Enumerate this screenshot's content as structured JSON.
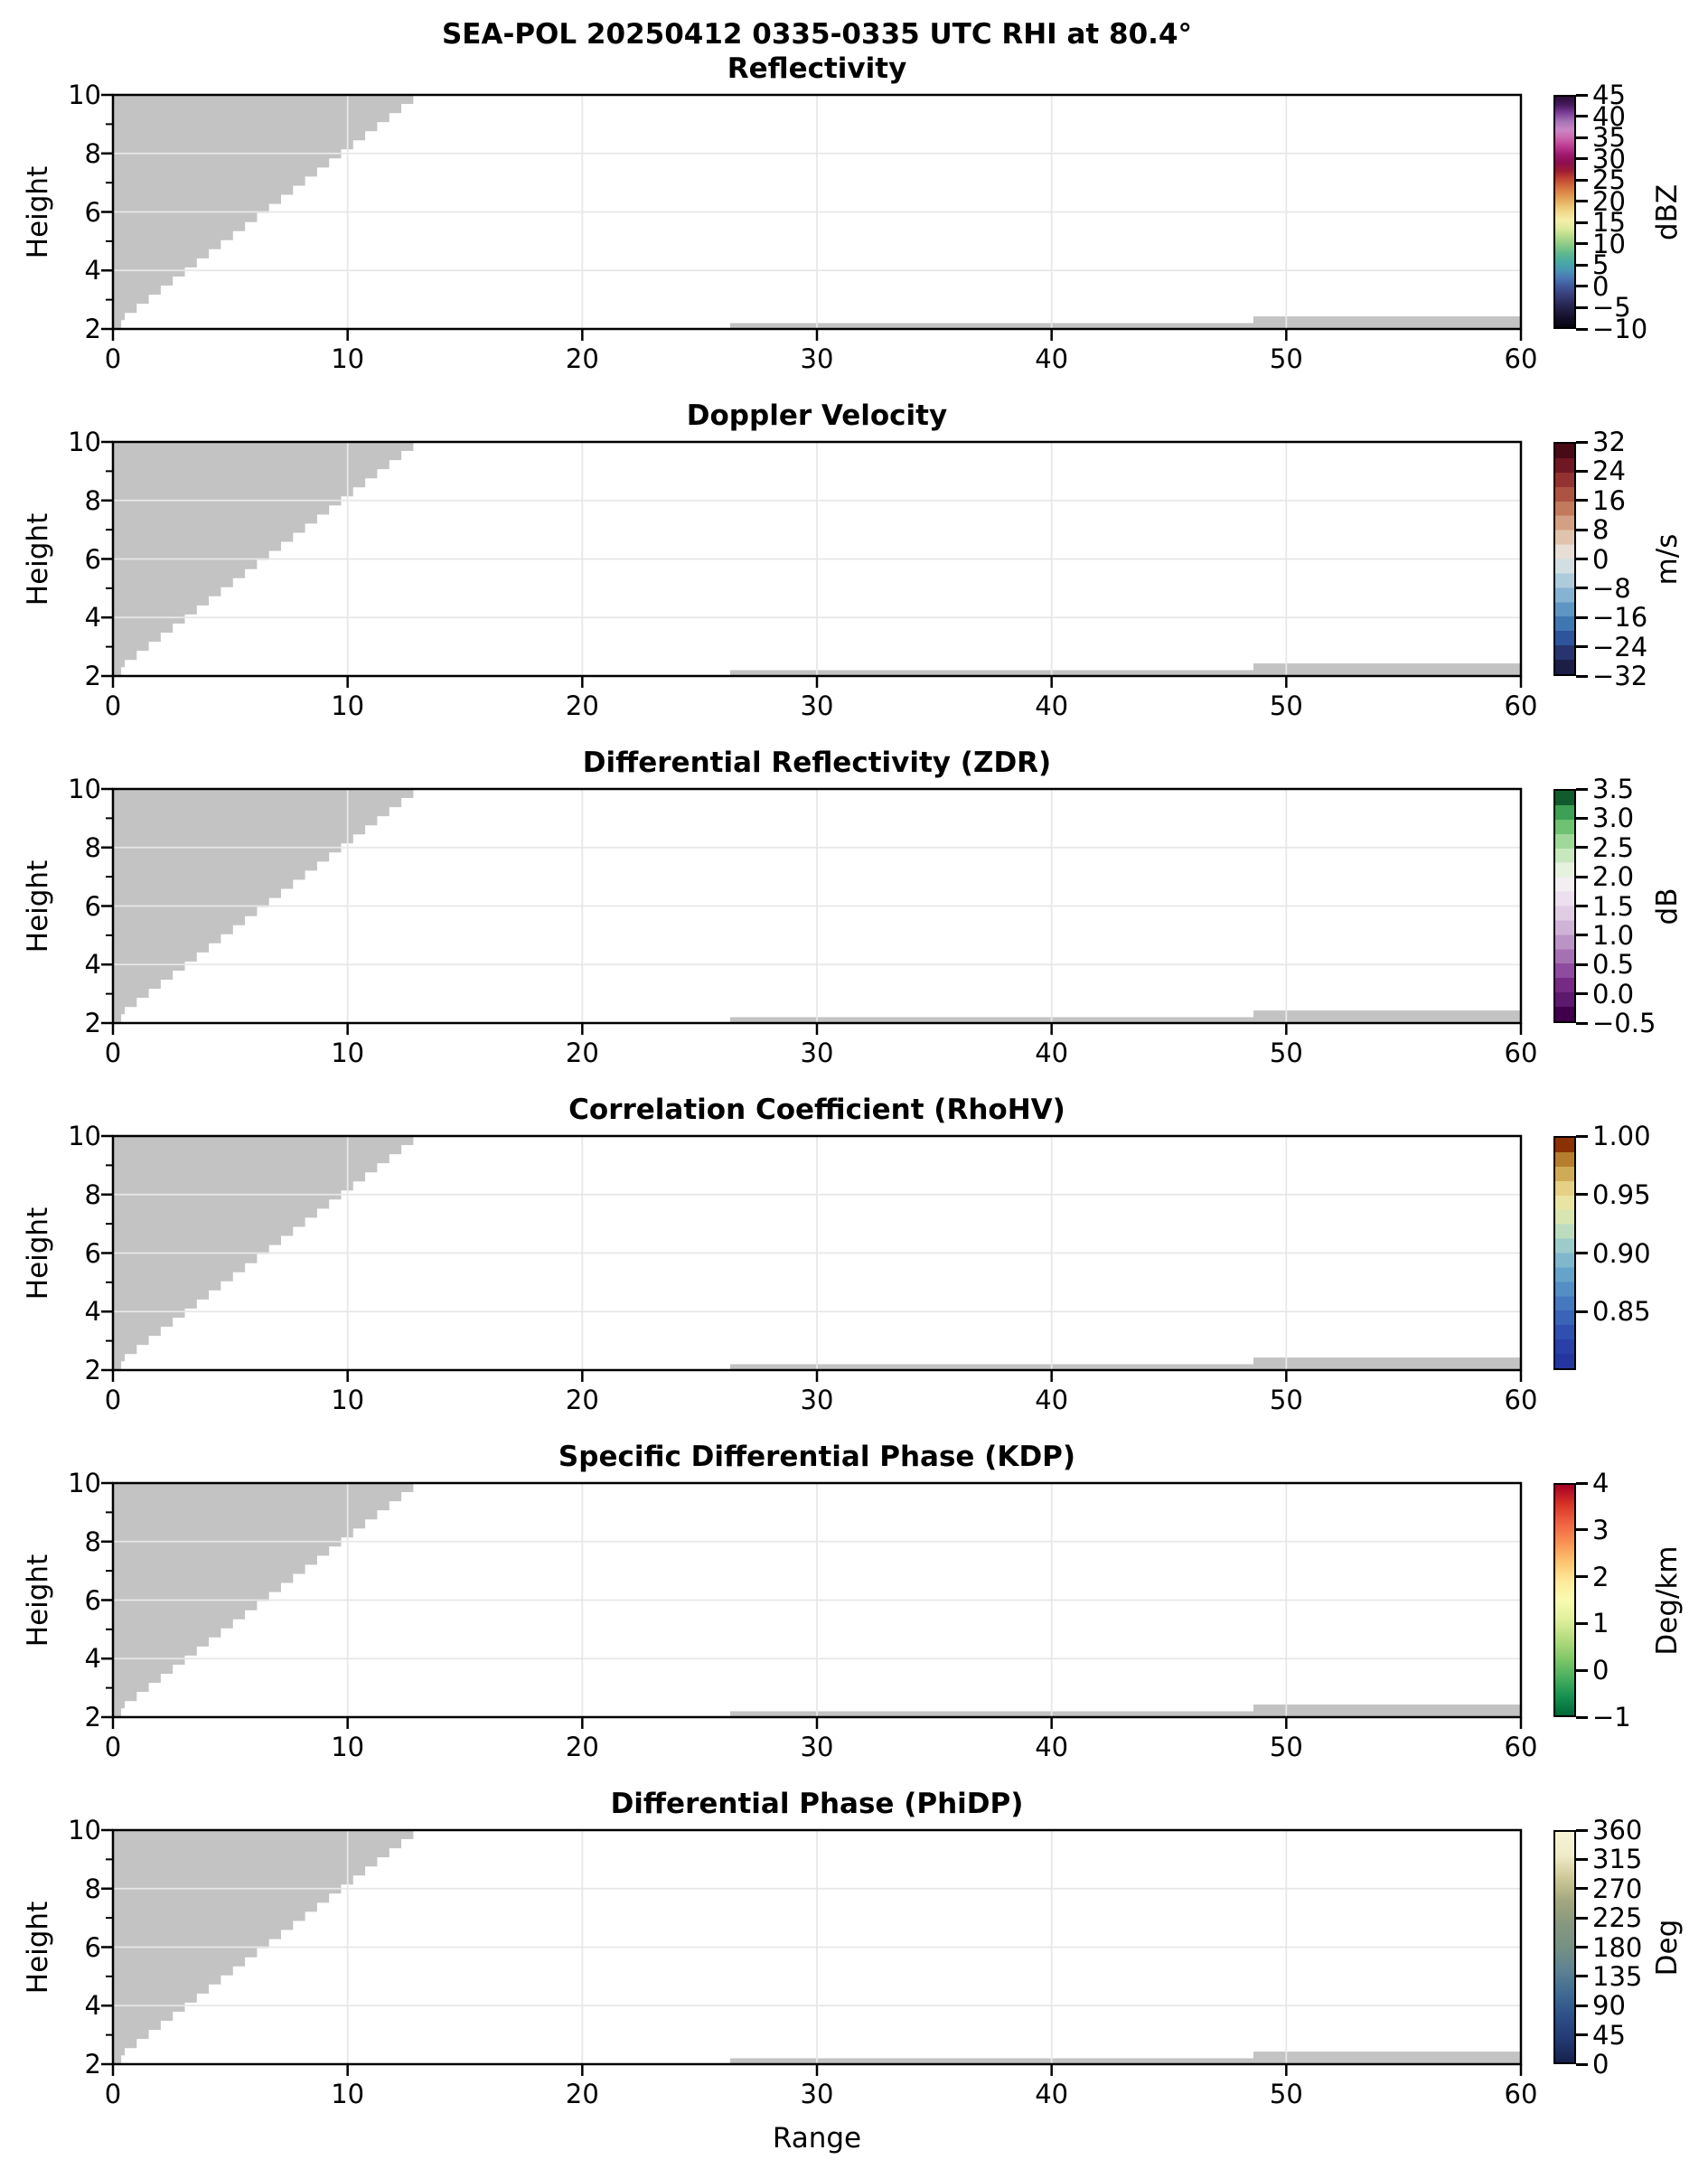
{
  "figure": {
    "suptitle": "SEA-POL 20250412 0335-0335 UTC RHI at 80.4°",
    "background": "#ffffff"
  },
  "chart_data": {
    "type": "heatmap",
    "note": "Six-panel polarimetric radar RHI quicklook. All echo regions shown are masked/no-data (uniform gray): a stair-stepped wedge in the upper-left of each panel and two thin strips along the bottom right. No colored radar values are rendered.",
    "xlabel": "Range",
    "ylabel": "Height",
    "x_range": [
      0,
      60
    ],
    "y_range": [
      2,
      10
    ],
    "x_tick_values": [
      0,
      10,
      20,
      30,
      40,
      50,
      60
    ],
    "x_tick_labels": [
      "0",
      "10",
      "20",
      "30",
      "40",
      "50",
      "60"
    ],
    "y_tick_values": [
      10,
      8,
      6,
      4,
      2
    ],
    "y_tick_labels": [
      "10",
      "8",
      "6",
      "4",
      "2"
    ],
    "y_minor_tick_values": [
      9,
      7,
      5,
      3
    ],
    "grid": {
      "x_lines": [
        10,
        20,
        30,
        40,
        50
      ],
      "y_lines": [
        4,
        6,
        8
      ],
      "color": "#e7e7e7"
    },
    "mask_color": "#c3c3c3",
    "mask": {
      "wedge": {
        "top": [
          12.8,
          10.0
        ],
        "knee": [
          0.5,
          2.55
        ],
        "foot": [
          0.3,
          2.0
        ],
        "steps": 24
      },
      "strips": [
        {
          "x": [
            26.3,
            48.6
          ],
          "y": [
            2.0,
            2.2
          ]
        },
        {
          "x": [
            48.6,
            60.0
          ],
          "y": [
            2.0,
            2.43
          ]
        }
      ]
    },
    "panels": [
      {
        "title": "Reflectivity",
        "unit": "dBZ",
        "vmin": -10,
        "vmax": 45,
        "tick_values": [
          45,
          40,
          35,
          30,
          25,
          20,
          15,
          10,
          5,
          0,
          -5,
          -10
        ],
        "tick_labels": [
          "45",
          "40",
          "35",
          "30",
          "25",
          "20",
          "15",
          "10",
          "5",
          "0",
          "−5",
          "−10"
        ],
        "style": "continuous",
        "colors_bottom_to_top": [
          "#060410",
          "#120e26",
          "#201c40",
          "#2c2c5c",
          "#39407b",
          "#40589a",
          "#4a78b5",
          "#4897b3",
          "#49aba1",
          "#60b98e",
          "#8aca84",
          "#b4da8d",
          "#dcea9b",
          "#f3efa9",
          "#f0d98a",
          "#e9bb6a",
          "#e0954f",
          "#d4703f",
          "#c04532",
          "#9c1c33",
          "#8c0e51",
          "#a01a6e",
          "#bc3c92",
          "#cc66ad",
          "#c887c5",
          "#a573b5",
          "#7c3f97",
          "#471b5e",
          "#2b0d36"
        ]
      },
      {
        "title": "Doppler Velocity",
        "unit": "m/s",
        "vmin": -32,
        "vmax": 32,
        "tick_values": [
          32,
          24,
          16,
          8,
          0,
          -8,
          -16,
          -24,
          -32
        ],
        "tick_labels": [
          "32",
          "24",
          "16",
          "8",
          "0",
          "−8",
          "−16",
          "−24",
          "−32"
        ],
        "style": "discrete",
        "colors_bottom_to_top": [
          "#1c1e45",
          "#27346f",
          "#2e549c",
          "#3f77b3",
          "#5e96c3",
          "#86b3d2",
          "#aecbdc",
          "#d2dfe2",
          "#e7ded6",
          "#e0c3ac",
          "#d3a083",
          "#c27a5c",
          "#ad5342",
          "#923231",
          "#6f1722",
          "#470a16"
        ]
      },
      {
        "title": "Differential Reflectivity (ZDR)",
        "unit": "dB",
        "vmin": -0.5,
        "vmax": 3.5,
        "tick_values": [
          3.5,
          3.0,
          2.5,
          2.0,
          1.5,
          1.0,
          0.5,
          0.0,
          -0.5
        ],
        "tick_labels": [
          "3.5",
          "3.0",
          "2.5",
          "2.0",
          "1.5",
          "1.0",
          "0.5",
          "0.0",
          "−0.5"
        ],
        "style": "discrete",
        "colors_bottom_to_top": [
          "#40004b",
          "#5d196e",
          "#762a83",
          "#8f4b9f",
          "#a671b2",
          "#bb94c6",
          "#cfb3d7",
          "#e0cde4",
          "#ecdfee",
          "#f2eef2",
          "#e6f1de",
          "#c9e7bd",
          "#a0d89a",
          "#6ec272",
          "#3da054",
          "#115c2c"
        ]
      },
      {
        "title": "Correlation Coefficient (RhoHV)",
        "unit": "",
        "vmin": 0.8,
        "vmax": 1.0,
        "tick_values": [
          1.0,
          0.95,
          0.9,
          0.85
        ],
        "tick_labels": [
          "1.00",
          "0.95",
          "0.90",
          "0.85"
        ],
        "style": "discrete",
        "colors_bottom_to_top": [
          "#2336a0",
          "#2840a8",
          "#2f50b0",
          "#3a64b8",
          "#4579bf",
          "#538ec5",
          "#66a3ca",
          "#7fb8cc",
          "#9ccbc9",
          "#bcdcc0",
          "#d8e5b0",
          "#e9e4a2",
          "#e5d185",
          "#d0ab57",
          "#b47e2e",
          "#8a3206"
        ]
      },
      {
        "title": "Specific Differential Phase (KDP)",
        "unit": "Deg/km",
        "vmin": -1,
        "vmax": 4,
        "tick_values": [
          4,
          3,
          2,
          1,
          0,
          -1
        ],
        "tick_labels": [
          "4",
          "3",
          "2",
          "1",
          "0",
          "−1"
        ],
        "style": "continuous",
        "colors_bottom_to_top": [
          "#006837",
          "#169250",
          "#4bb05f",
          "#84c868",
          "#b5dc7f",
          "#e1f09c",
          "#f8fbb0",
          "#fee999",
          "#fdc36f",
          "#f99153",
          "#ef6341",
          "#d73327",
          "#a50026"
        ]
      },
      {
        "title": "Differential Phase (PhiDP)",
        "unit": "Deg",
        "vmin": 0,
        "vmax": 360,
        "tick_values": [
          360,
          315,
          270,
          225,
          180,
          135,
          90,
          45,
          0
        ],
        "tick_labels": [
          "360",
          "315",
          "270",
          "225",
          "180",
          "135",
          "90",
          "45",
          "0"
        ],
        "style": "continuous",
        "colors_bottom_to_top": [
          "#16204a",
          "#233a73",
          "#2d4f87",
          "#3f6b93",
          "#5d8292",
          "#769184",
          "#87977f",
          "#a3a77e",
          "#cdc996",
          "#f0ecc8",
          "#f7f4d5"
        ]
      }
    ]
  }
}
